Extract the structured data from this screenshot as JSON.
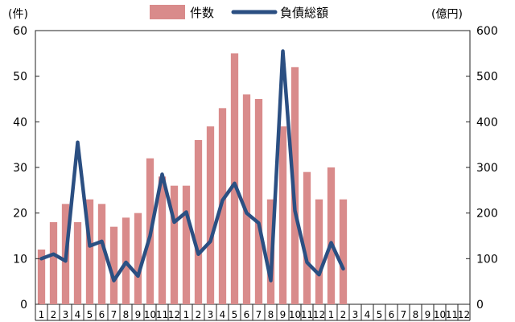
{
  "chart_data": {
    "type": "bar",
    "categories": [
      "1",
      "2",
      "3",
      "4",
      "5",
      "6",
      "7",
      "8",
      "9",
      "10",
      "11",
      "12",
      "1",
      "2",
      "3",
      "4",
      "5",
      "6",
      "7",
      "8",
      "9",
      "10",
      "11",
      "12",
      "1",
      "2",
      "3",
      "4",
      "5",
      "6",
      "7",
      "8",
      "9",
      "10",
      "11",
      "12"
    ],
    "left_axis_label": "(件)",
    "right_axis_label": "(億円)",
    "ylim_left": [
      0,
      60
    ],
    "yticks_left": [
      "0",
      "10",
      "20",
      "30",
      "40",
      "50",
      "60"
    ],
    "ylim_right": [
      0,
      600
    ],
    "yticks_right": [
      "0",
      "100",
      "200",
      "300",
      "400",
      "500",
      "600"
    ],
    "grid": false,
    "legend_position": "top",
    "series": [
      {
        "name": "件数",
        "type": "bar",
        "axis": "left",
        "color": "#d98b8b",
        "values": [
          12,
          18,
          22,
          18,
          23,
          22,
          17,
          19,
          20,
          32,
          28,
          26,
          26,
          36,
          39,
          43,
          55,
          46,
          45,
          23,
          39,
          52,
          29,
          23,
          30,
          23,
          null,
          null,
          null,
          null,
          null,
          null,
          null,
          null,
          null,
          null
        ]
      },
      {
        "name": "負債総額",
        "type": "line",
        "axis": "right",
        "color": "#2b4f82",
        "values": [
          100,
          110,
          95,
          355,
          128,
          138,
          52,
          92,
          62,
          150,
          285,
          180,
          202,
          110,
          138,
          228,
          265,
          200,
          178,
          52,
          555,
          205,
          92,
          65,
          135,
          78,
          null,
          null,
          null,
          null,
          null,
          null,
          null,
          null,
          null,
          null
        ]
      }
    ]
  }
}
